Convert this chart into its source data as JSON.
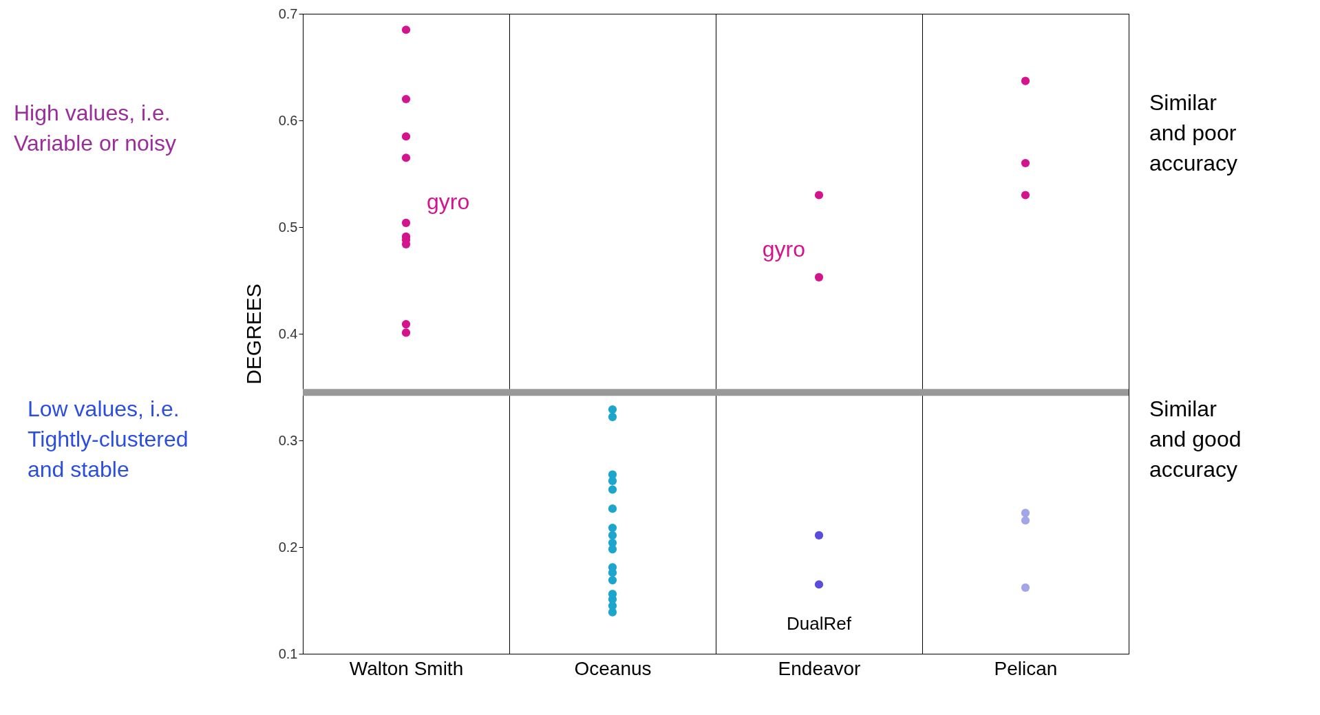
{
  "chart_data": {
    "type": "scatter",
    "ylabel": "DEGREES",
    "categories": [
      "Walton Smith",
      "Oceanus",
      "Endeavor",
      "Pelican"
    ],
    "ylim": [
      0.1,
      0.7
    ],
    "yticks": [
      0.1,
      0.2,
      0.3,
      0.4,
      0.5,
      0.6,
      0.7
    ],
    "grid": "x",
    "marker": "circle",
    "legend": false,
    "series": [
      {
        "name": "gyro",
        "color": "#d4148c",
        "x": [
          "Walton Smith",
          "Walton Smith",
          "Walton Smith",
          "Walton Smith",
          "Walton Smith",
          "Walton Smith",
          "Walton Smith",
          "Walton Smith",
          "Walton Smith",
          "Walton Smith",
          "Endeavor",
          "Endeavor"
        ],
        "values": [
          0.685,
          0.62,
          0.585,
          0.565,
          0.504,
          0.491,
          0.488,
          0.484,
          0.409,
          0.401,
          0.53,
          0.453
        ]
      },
      {
        "color": "#d4148c",
        "x": [
          "Pelican",
          "Pelican",
          "Pelican"
        ],
        "values": [
          0.637,
          0.56,
          0.53
        ]
      },
      {
        "color": "#1ca6cc",
        "x": [
          "Oceanus",
          "Oceanus",
          "Oceanus",
          "Oceanus",
          "Oceanus",
          "Oceanus",
          "Oceanus",
          "Oceanus",
          "Oceanus",
          "Oceanus",
          "Oceanus",
          "Oceanus",
          "Oceanus",
          "Oceanus",
          "Oceanus",
          "Oceanus",
          "Oceanus"
        ],
        "values": [
          0.329,
          0.322,
          0.268,
          0.262,
          0.254,
          0.236,
          0.218,
          0.211,
          0.204,
          0.198,
          0.181,
          0.176,
          0.169,
          0.156,
          0.151,
          0.145,
          0.139
        ]
      },
      {
        "color": "#5b4ddb",
        "x": [
          "Endeavor",
          "Endeavor"
        ],
        "values": [
          0.211,
          0.165
        ]
      },
      {
        "color": "#a3a6e6",
        "x": [
          "Pelican",
          "Pelican",
          "Pelican"
        ],
        "values": [
          0.232,
          0.225,
          0.162
        ]
      }
    ],
    "ref_lines": [
      {
        "axis": "y",
        "value": 0.345,
        "color": "#999999"
      }
    ],
    "annotations": [
      "High values, i.e.\nVariable or noisy",
      "Low values, i.e.\nTightly-clustered\nand stable",
      "Similar\nand poor\naccuracy",
      "Similar\nand good\naccuracy",
      {
        "text": "DualRef",
        "x": "Endeavor",
        "y": 0.165
      }
    ]
  }
}
